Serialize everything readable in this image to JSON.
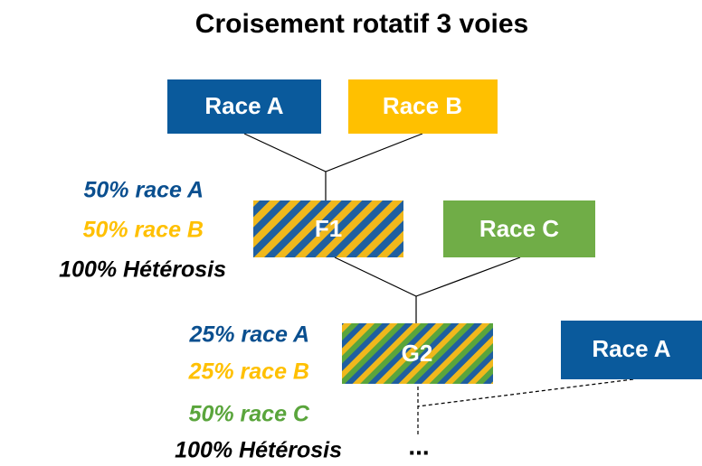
{
  "title": "Croisement rotatif 3 voies",
  "nodes": [
    {
      "label": "Race A"
    },
    {
      "label": "Race B"
    },
    {
      "label": "F1"
    },
    {
      "label": "Race C"
    },
    {
      "label": "G2"
    },
    {
      "label": "Race A"
    }
  ],
  "f1_composition": [
    "50% race A",
    "50% race B",
    "100% Hétérosis"
  ],
  "g2_composition": [
    "25% race A",
    "25% race B",
    "50% race C",
    "100% Hétérosis"
  ],
  "continuation": "..."
}
